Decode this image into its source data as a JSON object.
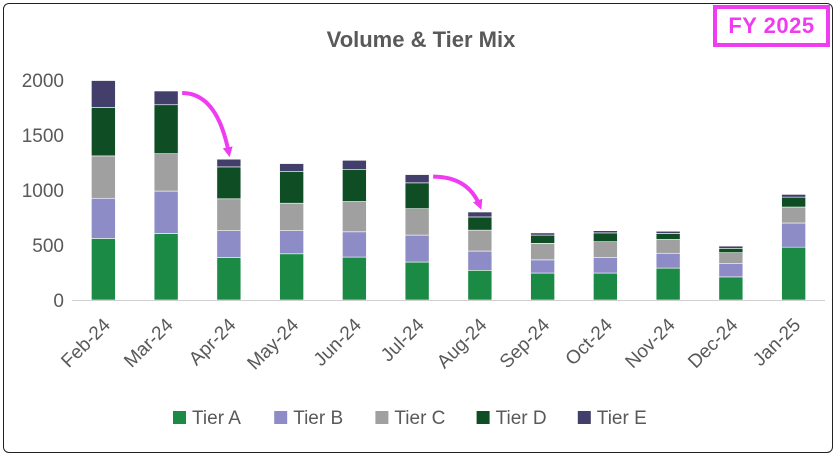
{
  "badge": {
    "label": "FY 2025",
    "color": "#f03cf0"
  },
  "chart_data": {
    "type": "bar",
    "stacked": true,
    "title": "Volume & Tier Mix",
    "xlabel": "",
    "ylabel": "",
    "ylim": [
      0,
      2000
    ],
    "yticks": [
      0,
      500,
      1000,
      1500,
      2000
    ],
    "grid": false,
    "legend_position": "bottom",
    "categories": [
      "Feb-24",
      "Mar-24",
      "Apr-24",
      "May-24",
      "Jun-24",
      "Jul-24",
      "Aug-24",
      "Sep-24",
      "Oct-24",
      "Nov-24",
      "Dec-24",
      "Jan-25"
    ],
    "series": [
      {
        "name": "Tier A",
        "color": "#1a8a45",
        "values": [
          560,
          605,
          385,
          420,
          390,
          345,
          270,
          245,
          245,
          290,
          210,
          480
        ]
      },
      {
        "name": "Tier B",
        "color": "#8e8cc7",
        "values": [
          365,
          385,
          245,
          210,
          230,
          245,
          175,
          120,
          140,
          135,
          120,
          220
        ]
      },
      {
        "name": "Tier C",
        "color": "#a0a0a0",
        "values": [
          385,
          340,
          290,
          250,
          275,
          240,
          190,
          150,
          145,
          125,
          100,
          145
        ]
      },
      {
        "name": "Tier D",
        "color": "#0f4d25",
        "values": [
          440,
          445,
          290,
          290,
          290,
          235,
          120,
          75,
          80,
          55,
          40,
          90
        ]
      },
      {
        "name": "Tier E",
        "color": "#433f6b",
        "values": [
          245,
          125,
          70,
          70,
          85,
          75,
          45,
          20,
          20,
          20,
          20,
          25
        ]
      }
    ],
    "annotations": [
      {
        "type": "arrow",
        "color": "#f03cf0",
        "from_category": "Mar-24",
        "to_category": "Apr-24"
      },
      {
        "type": "arrow",
        "color": "#f03cf0",
        "from_category": "Jul-24",
        "to_category": "Aug-24"
      }
    ]
  }
}
